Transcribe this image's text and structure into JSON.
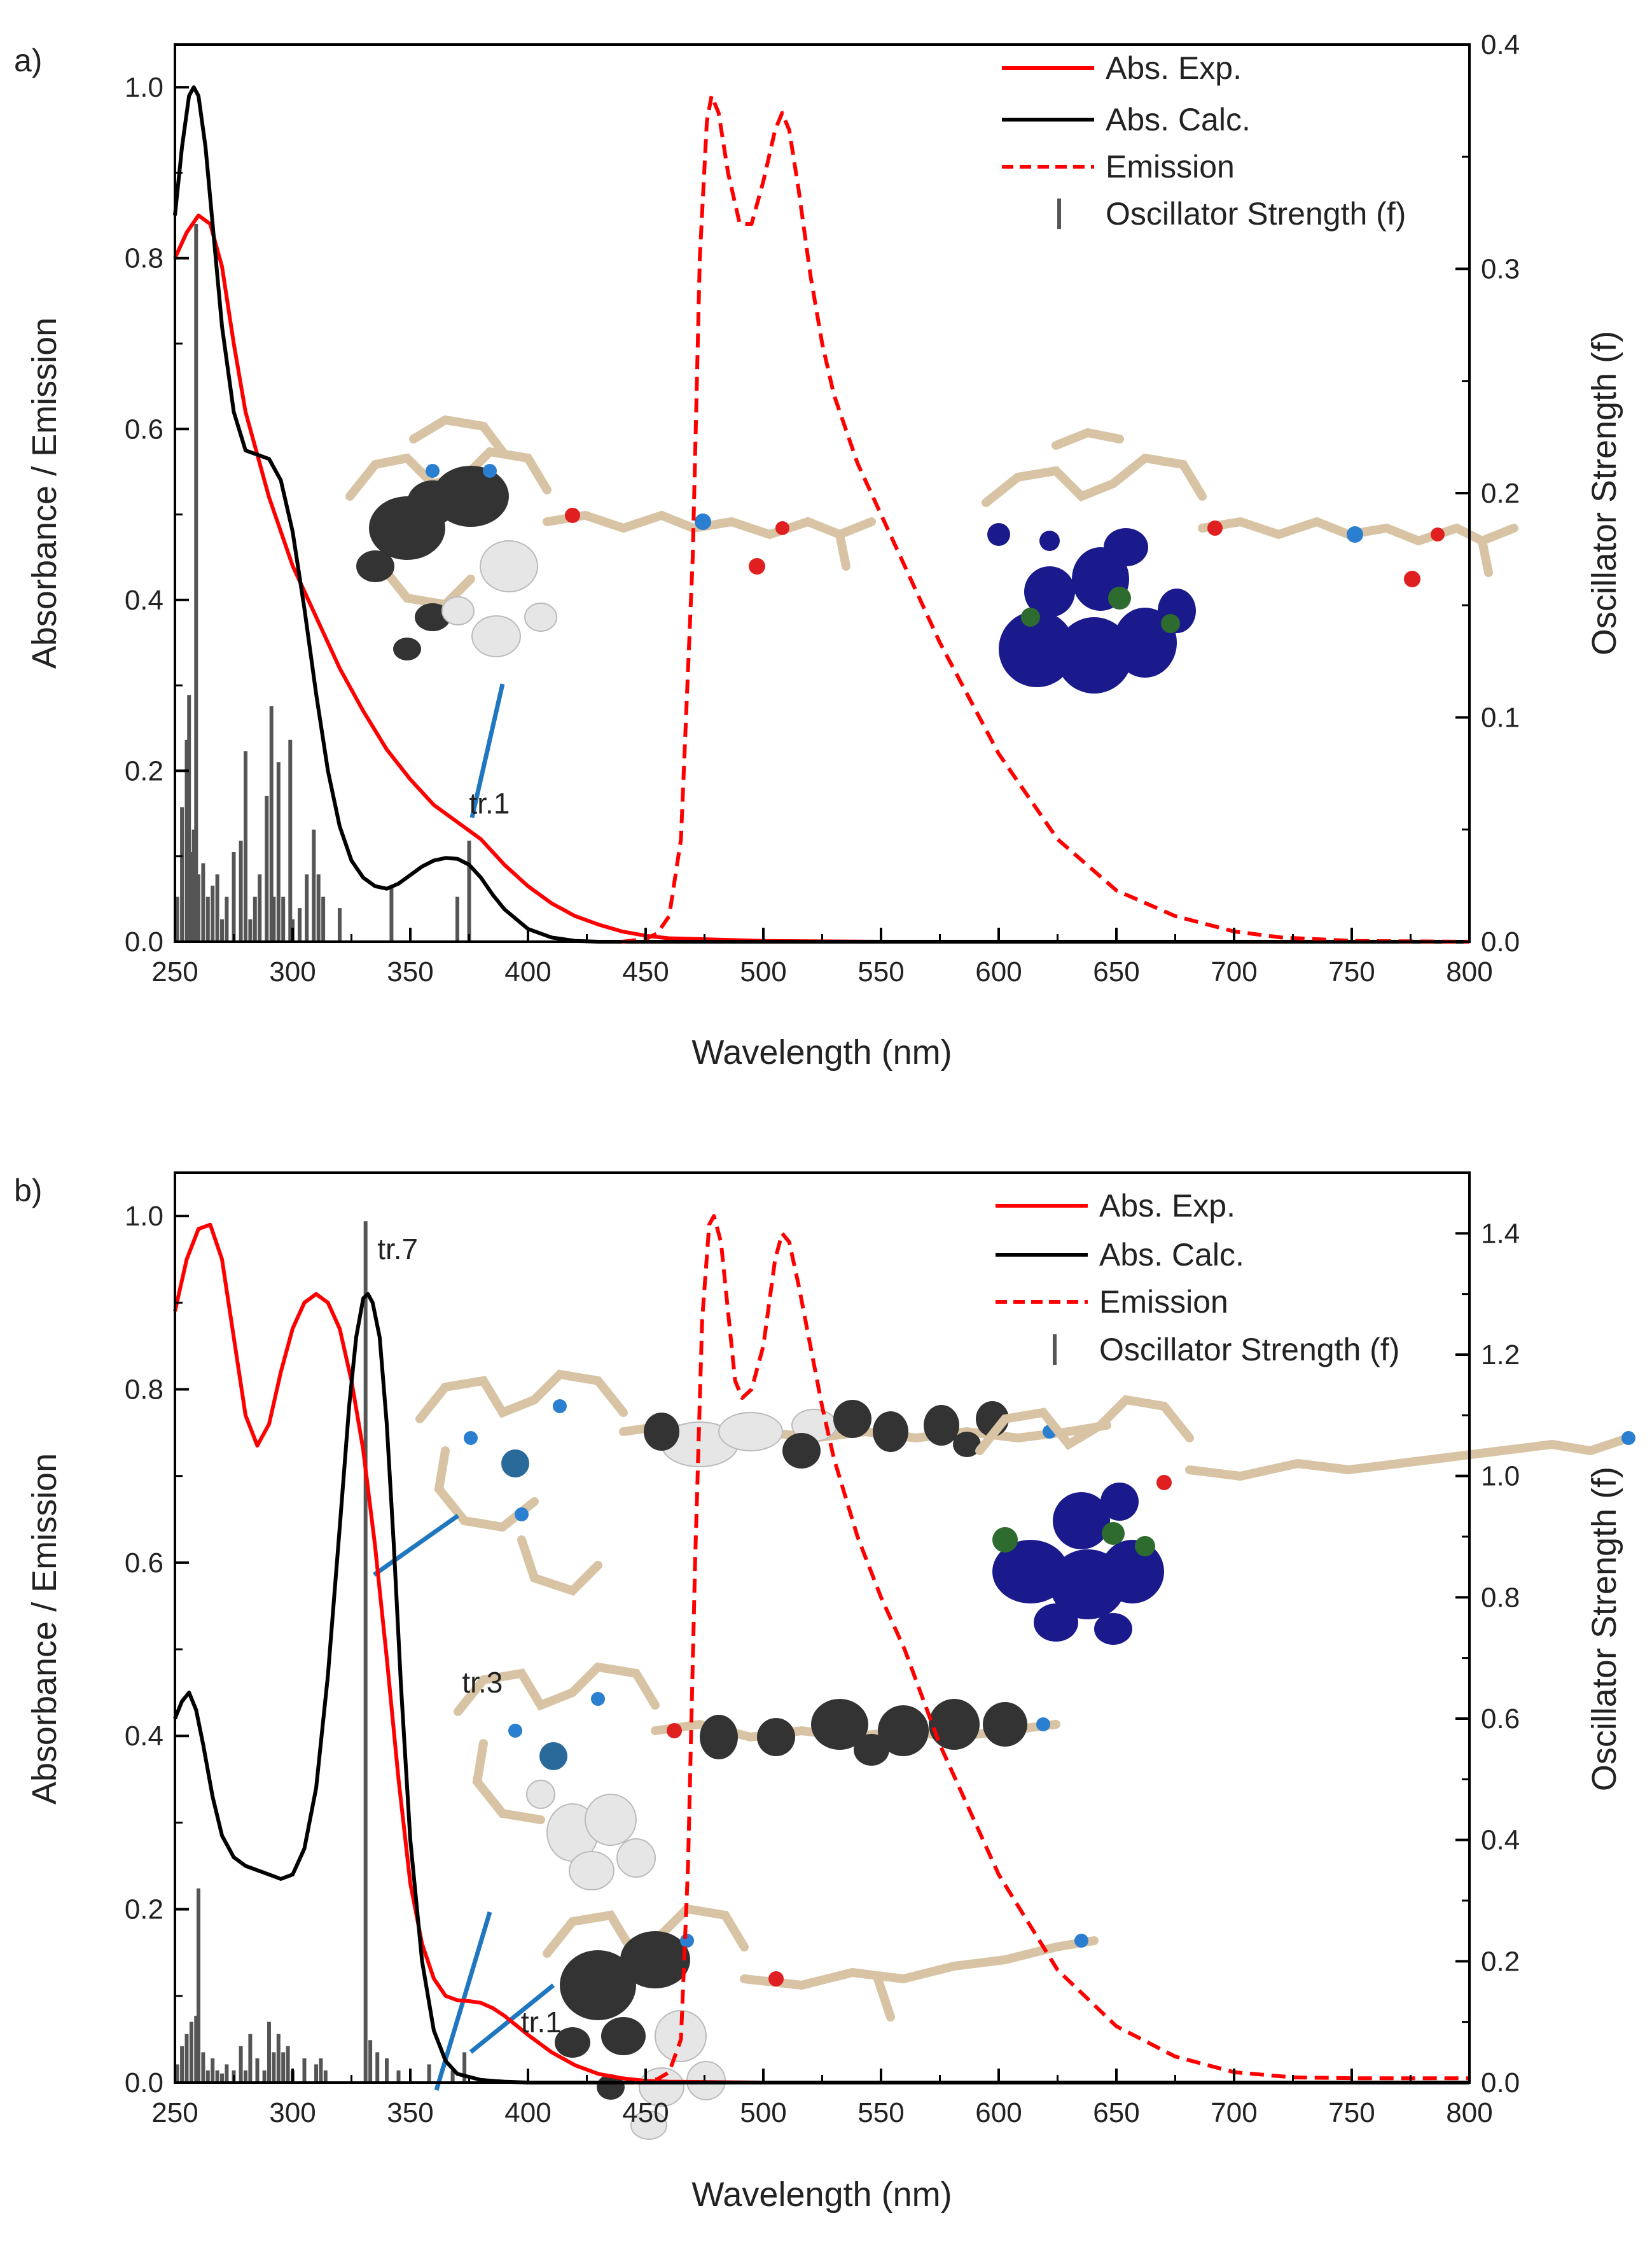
{
  "colors": {
    "exp": "#ff0000",
    "calc": "#000000",
    "emission": "#ff0000",
    "stick": "#555555",
    "pointer": "#1f77c0",
    "axis": "#000000",
    "mol_tan": "#d8c4a4",
    "mol_dark": "#333333",
    "mol_white": "#e6e6e6",
    "mol_blue": "#1a1a8c",
    "mol_green": "#2e6b2e",
    "mol_o": "#e02020",
    "mol_n": "#2a7fd0"
  },
  "chart_data": [
    {
      "type": "line",
      "panel_label": "a)",
      "xlabel": "Wavelength (nm)",
      "ylabel": "Absorbance / Emission",
      "ylabel_right": "Oscillator Strength (f)",
      "xlim": [
        250,
        800
      ],
      "ylim": [
        0.0,
        1.05
      ],
      "ylim_right": [
        0.0,
        0.4
      ],
      "xticks": [
        "250",
        "300",
        "350",
        "400",
        "450",
        "500",
        "550",
        "600",
        "650",
        "700",
        "750",
        "800"
      ],
      "yticks": [
        "0.0",
        "0.2",
        "0.4",
        "0.6",
        "0.8",
        "1.0"
      ],
      "yticks_right": [
        "0.0",
        "0.1",
        "0.2",
        "0.3",
        "0.4"
      ],
      "legend": [
        "Abs. Exp.",
        "Abs. Calc.",
        "Emission",
        "Oscillator Strength (f)"
      ],
      "legend_position": "top-right",
      "series": [
        {
          "name": "Abs. Exp.",
          "style": "solid",
          "color": "#ff0000",
          "x": [
            250,
            255,
            260,
            265,
            270,
            275,
            280,
            290,
            300,
            310,
            320,
            330,
            340,
            350,
            360,
            370,
            375,
            380,
            390,
            400,
            410,
            420,
            430,
            440,
            450,
            460,
            500,
            550,
            600,
            700,
            800
          ],
          "y": [
            0.8,
            0.83,
            0.85,
            0.84,
            0.79,
            0.7,
            0.62,
            0.52,
            0.44,
            0.38,
            0.32,
            0.27,
            0.225,
            0.19,
            0.16,
            0.14,
            0.13,
            0.12,
            0.09,
            0.065,
            0.045,
            0.03,
            0.02,
            0.012,
            0.007,
            0.004,
            0.001,
            0.0,
            0.0,
            0.0,
            0.0
          ]
        },
        {
          "name": "Abs. Calc.",
          "style": "solid",
          "color": "#000000",
          "x": [
            250,
            253,
            256,
            258,
            260,
            263,
            266,
            270,
            275,
            280,
            285,
            290,
            295,
            300,
            305,
            310,
            315,
            320,
            325,
            330,
            335,
            340,
            345,
            350,
            355,
            360,
            365,
            370,
            375,
            380,
            385,
            390,
            400,
            410,
            420,
            430,
            450,
            500,
            800
          ],
          "y": [
            0.85,
            0.93,
            0.99,
            1.0,
            0.99,
            0.93,
            0.84,
            0.72,
            0.62,
            0.575,
            0.57,
            0.565,
            0.54,
            0.48,
            0.39,
            0.29,
            0.2,
            0.135,
            0.095,
            0.075,
            0.065,
            0.062,
            0.068,
            0.078,
            0.088,
            0.095,
            0.098,
            0.097,
            0.09,
            0.075,
            0.055,
            0.038,
            0.015,
            0.005,
            0.001,
            0.0,
            0.0,
            0.0,
            0.0
          ]
        },
        {
          "name": "Emission",
          "style": "dashed",
          "color": "#ff0000",
          "x": [
            440,
            450,
            455,
            460,
            465,
            470,
            473,
            476,
            478,
            481,
            485,
            490,
            495,
            500,
            505,
            508,
            511,
            515,
            520,
            525,
            530,
            540,
            550,
            560,
            575,
            600,
            625,
            650,
            675,
            700,
            720,
            750,
            800
          ],
          "y": [
            0.0,
            0.003,
            0.01,
            0.03,
            0.12,
            0.45,
            0.8,
            0.96,
            0.99,
            0.97,
            0.9,
            0.84,
            0.84,
            0.89,
            0.95,
            0.97,
            0.95,
            0.88,
            0.78,
            0.7,
            0.64,
            0.56,
            0.5,
            0.44,
            0.35,
            0.22,
            0.12,
            0.06,
            0.03,
            0.012,
            0.005,
            0.001,
            0.0
          ]
        }
      ],
      "oscillator": {
        "x": [
          251,
          253,
          255,
          256,
          257,
          258,
          259,
          260,
          262,
          264,
          266,
          268,
          270,
          272,
          275,
          278,
          280,
          282,
          284,
          286,
          289,
          291,
          292,
          294,
          296,
          299,
          300,
          303,
          306,
          309,
          311,
          313,
          320,
          342,
          370,
          375
        ],
        "f": [
          0.02,
          0.06,
          0.09,
          0.11,
          0.04,
          0.05,
          0.32,
          0.03,
          0.035,
          0.02,
          0.025,
          0.03,
          0.01,
          0.02,
          0.04,
          0.045,
          0.085,
          0.01,
          0.02,
          0.03,
          0.065,
          0.105,
          0.02,
          0.08,
          0.02,
          0.09,
          0.01,
          0.015,
          0.03,
          0.05,
          0.03,
          0.02,
          0.015,
          0.025,
          0.02,
          0.045
        ]
      },
      "annotations": [
        {
          "text": "tr.1",
          "x": 375,
          "y": 0.15
        }
      ]
    },
    {
      "type": "line",
      "panel_label": "b)",
      "xlabel": "Wavelength (nm)",
      "ylabel": "Absorbance / Emission",
      "ylabel_right": "Oscillator Strength (f)",
      "xlim": [
        250,
        800
      ],
      "ylim": [
        0.0,
        1.05
      ],
      "ylim_right": [
        0.0,
        1.5
      ],
      "xticks": [
        "250",
        "300",
        "350",
        "400",
        "450",
        "500",
        "550",
        "600",
        "650",
        "700",
        "750",
        "800"
      ],
      "yticks": [
        "0.0",
        "0.2",
        "0.4",
        "0.6",
        "0.8",
        "1.0"
      ],
      "yticks_right": [
        "0.0",
        "0.2",
        "0.4",
        "0.6",
        "0.8",
        "1.0",
        "1.2",
        "1.4"
      ],
      "legend": [
        "Abs. Exp.",
        "Abs. Calc.",
        "Emission",
        "Oscillator Strength (f)"
      ],
      "legend_position": "top-right",
      "series": [
        {
          "name": "Abs. Exp.",
          "style": "solid",
          "color": "#ff0000",
          "x": [
            250,
            255,
            260,
            265,
            270,
            275,
            280,
            285,
            290,
            295,
            300,
            305,
            310,
            315,
            320,
            325,
            330,
            335,
            340,
            345,
            350,
            355,
            360,
            365,
            370,
            375,
            380,
            385,
            390,
            395,
            400,
            410,
            420,
            430,
            440,
            450,
            460,
            500,
            800
          ],
          "y": [
            0.89,
            0.95,
            0.985,
            0.99,
            0.95,
            0.86,
            0.77,
            0.735,
            0.76,
            0.82,
            0.87,
            0.9,
            0.91,
            0.9,
            0.87,
            0.81,
            0.73,
            0.62,
            0.49,
            0.35,
            0.23,
            0.16,
            0.12,
            0.1,
            0.095,
            0.094,
            0.092,
            0.086,
            0.077,
            0.066,
            0.055,
            0.035,
            0.02,
            0.01,
            0.005,
            0.002,
            0.001,
            0.0,
            0.0
          ]
        },
        {
          "name": "Abs. Calc.",
          "style": "solid",
          "color": "#000000",
          "x": [
            250,
            253,
            256,
            259,
            262,
            266,
            270,
            275,
            280,
            285,
            290,
            295,
            300,
            305,
            310,
            315,
            320,
            324,
            327,
            330,
            332,
            334,
            337,
            340,
            343,
            346,
            350,
            355,
            360,
            365,
            370,
            380,
            390,
            400,
            420,
            450,
            800
          ],
          "y": [
            0.42,
            0.44,
            0.45,
            0.43,
            0.39,
            0.33,
            0.285,
            0.26,
            0.25,
            0.245,
            0.24,
            0.235,
            0.24,
            0.27,
            0.34,
            0.47,
            0.64,
            0.78,
            0.86,
            0.905,
            0.91,
            0.9,
            0.86,
            0.76,
            0.62,
            0.46,
            0.28,
            0.14,
            0.06,
            0.025,
            0.01,
            0.003,
            0.001,
            0.0,
            0.0,
            0.0,
            0.0
          ]
        },
        {
          "name": "Emission",
          "style": "dashed",
          "color": "#ff0000",
          "x": [
            445,
            455,
            460,
            465,
            468,
            471,
            474,
            477,
            479,
            482,
            485,
            488,
            491,
            495,
            500,
            505,
            508,
            511,
            515,
            520,
            525,
            530,
            540,
            550,
            560,
            575,
            600,
            625,
            650,
            675,
            700,
            725,
            750,
            800
          ],
          "y": [
            0.0,
            0.004,
            0.012,
            0.05,
            0.25,
            0.6,
            0.88,
            0.99,
            1.0,
            0.97,
            0.89,
            0.81,
            0.79,
            0.8,
            0.85,
            0.95,
            0.98,
            0.97,
            0.92,
            0.85,
            0.78,
            0.72,
            0.63,
            0.56,
            0.5,
            0.39,
            0.24,
            0.13,
            0.065,
            0.03,
            0.012,
            0.006,
            0.005,
            0.005
          ]
        }
      ],
      "oscillator": {
        "x": [
          251,
          253,
          255,
          257,
          259,
          260,
          262,
          264,
          266,
          268,
          270,
          272,
          275,
          278,
          280,
          282,
          285,
          288,
          290,
          292,
          294,
          296,
          298,
          300,
          305,
          310,
          312,
          314,
          331,
          333,
          336,
          340,
          345,
          358,
          368,
          373
        ],
        "f": [
          0.03,
          0.06,
          0.08,
          0.1,
          0.11,
          0.32,
          0.05,
          0.02,
          0.04,
          0.02,
          0.015,
          0.03,
          0.02,
          0.06,
          0.02,
          0.08,
          0.04,
          0.02,
          0.1,
          0.05,
          0.08,
          0.05,
          0.06,
          0.02,
          0.04,
          0.03,
          0.04,
          0.02,
          1.42,
          0.07,
          0.05,
          0.04,
          0.02,
          0.03,
          0.02,
          0.05
        ]
      },
      "annotations": [
        {
          "text": "tr.7",
          "x": 336,
          "y": 0.95
        },
        {
          "text": "tr.3",
          "x": 372,
          "y": 0.45
        },
        {
          "text": "tr.1",
          "x": 397,
          "y": 0.058
        }
      ]
    }
  ]
}
